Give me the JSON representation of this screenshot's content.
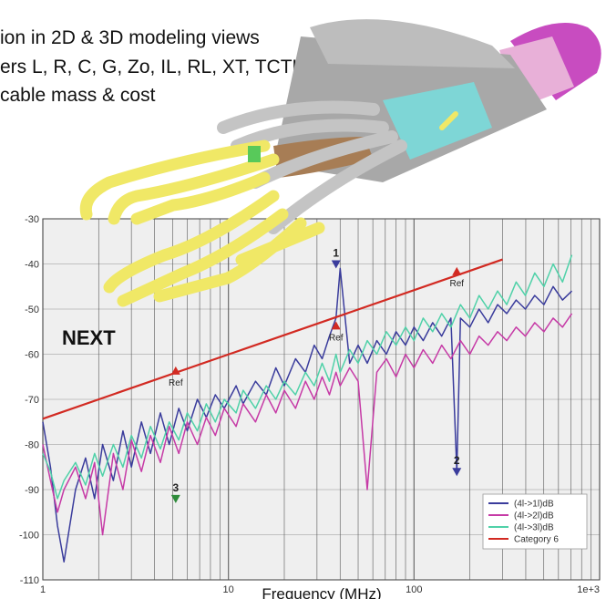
{
  "captions": [
    "ion in 2D & 3D modeling views",
    "ers L, R, C, G, Zo, IL, RL, XT, TCTL",
    "cable mass & cost"
  ],
  "colors": {
    "pair1": "#3a3c9c",
    "pair2": "#c63aa6",
    "pair3": "#4fd1a8",
    "limit": "#d22a22",
    "grid": "#555555",
    "background": "#efefef",
    "cable_yellow": "#f0e866",
    "cable_gray": "#c0c0c0",
    "jacket": "#c84cc0"
  },
  "illustration": {
    "subject": "3d-cable-model-icon"
  },
  "chart_data": {
    "type": "line",
    "title": "",
    "annotation": "NEXT",
    "xlabel": "Frequency (MHz)",
    "ylabel": "",
    "xscale": "log",
    "xlim": [
      1,
      1000
    ],
    "ylim": [
      -110,
      -30
    ],
    "x_ticks": [
      1,
      10,
      100,
      1000
    ],
    "x_tick_labels": [
      "1",
      "10",
      "100",
      "1e+3"
    ],
    "y_ticks": [
      -30,
      -40,
      -50,
      -60,
      -70,
      -80,
      -90,
      -100,
      -110
    ],
    "grid": true,
    "legend_position": "bottom-right",
    "series": [
      {
        "name": "(4l->1l)dB",
        "color": "#3a3c9c",
        "x": [
          1,
          1.1,
          1.2,
          1.3,
          1.5,
          1.7,
          1.9,
          2.1,
          2.4,
          2.7,
          3.0,
          3.4,
          3.8,
          4.3,
          4.8,
          5.4,
          6.0,
          6.8,
          7.6,
          8.5,
          9.5,
          11,
          12,
          14,
          16,
          18,
          20,
          23,
          26,
          29,
          32,
          35,
          38,
          40,
          45,
          50,
          56,
          63,
          71,
          80,
          90,
          100,
          112,
          126,
          141,
          158,
          170,
          178,
          200,
          224,
          251,
          282,
          316,
          355,
          398,
          447,
          501,
          562,
          631,
          708
        ],
        "y": [
          -75,
          -85,
          -98,
          -106,
          -90,
          -83,
          -92,
          -80,
          -88,
          -77,
          -85,
          -75,
          -82,
          -73,
          -80,
          -72,
          -77,
          -70,
          -74,
          -69,
          -72,
          -67,
          -71,
          -66,
          -69,
          -63,
          -67,
          -61,
          -64,
          -58,
          -61,
          -56,
          -52,
          -41,
          -62,
          -58,
          -62,
          -57,
          -60,
          -55,
          -58,
          -54,
          -57,
          -53,
          -56,
          -52,
          -86,
          -52,
          -54,
          -50,
          -53,
          -49,
          -51,
          -48,
          -50,
          -47,
          -49,
          -45,
          -48,
          -46
        ]
      },
      {
        "name": "(4l->2l)dB",
        "color": "#c63aa6",
        "x": [
          1,
          1.1,
          1.2,
          1.3,
          1.5,
          1.7,
          1.9,
          2.1,
          2.4,
          2.7,
          3.0,
          3.4,
          3.8,
          4.3,
          4.8,
          5.4,
          6.0,
          6.8,
          7.6,
          8.5,
          9.5,
          11,
          12,
          14,
          16,
          18,
          20,
          23,
          26,
          29,
          32,
          35,
          38,
          40,
          45,
          50,
          56,
          63,
          71,
          80,
          90,
          100,
          112,
          126,
          141,
          158,
          178,
          200,
          224,
          251,
          282,
          316,
          355,
          398,
          447,
          501,
          562,
          631,
          708
        ],
        "y": [
          -80,
          -88,
          -95,
          -90,
          -85,
          -92,
          -84,
          -100,
          -82,
          -90,
          -79,
          -86,
          -78,
          -84,
          -76,
          -82,
          -75,
          -80,
          -74,
          -78,
          -72,
          -76,
          -71,
          -75,
          -69,
          -73,
          -68,
          -72,
          -66,
          -70,
          -65,
          -69,
          -64,
          -67,
          -63,
          -66,
          -90,
          -64,
          -61,
          -65,
          -60,
          -63,
          -59,
          -62,
          -58,
          -61,
          -57,
          -60,
          -56,
          -58,
          -55,
          -57,
          -54,
          -56,
          -53,
          -55,
          -52,
          -54,
          -51
        ]
      },
      {
        "name": "(4l->3l)dB",
        "color": "#4fd1a8",
        "x": [
          1,
          1.1,
          1.2,
          1.3,
          1.5,
          1.7,
          1.9,
          2.1,
          2.4,
          2.7,
          3.0,
          3.4,
          3.8,
          4.3,
          4.8,
          5.4,
          6.0,
          6.8,
          7.6,
          8.5,
          9.5,
          11,
          12,
          14,
          16,
          18,
          20,
          23,
          26,
          29,
          32,
          35,
          38,
          40,
          45,
          50,
          56,
          63,
          71,
          80,
          90,
          100,
          112,
          126,
          141,
          158,
          178,
          200,
          224,
          251,
          282,
          316,
          355,
          398,
          447,
          501,
          562,
          631,
          708
        ],
        "y": [
          -82,
          -86,
          -92,
          -88,
          -84,
          -89,
          -82,
          -87,
          -80,
          -85,
          -78,
          -83,
          -76,
          -81,
          -75,
          -79,
          -73,
          -77,
          -71,
          -75,
          -70,
          -73,
          -68,
          -72,
          -67,
          -70,
          -66,
          -69,
          -64,
          -67,
          -62,
          -66,
          -60,
          -64,
          -59,
          -62,
          -57,
          -60,
          -55,
          -58,
          -54,
          -57,
          -52,
          -55,
          -51,
          -54,
          -49,
          -52,
          -47,
          -50,
          -46,
          -49,
          -44,
          -47,
          -42,
          -45,
          -40,
          -44,
          -38
        ]
      },
      {
        "name": "Category 6",
        "color": "#d22a22",
        "x": [
          1,
          300
        ],
        "y": [
          -74.3,
          -39
        ]
      }
    ],
    "markers": [
      {
        "x": 5.2,
        "y": -63.5,
        "label": "Ref",
        "color": "#d22a22",
        "direction": "up"
      },
      {
        "x": 38,
        "y": -53.5,
        "label": "Ref",
        "color": "#d22a22",
        "direction": "up"
      },
      {
        "x": 170,
        "y": -41.5,
        "label": "Ref",
        "color": "#d22a22",
        "direction": "up"
      },
      {
        "x": 38,
        "y": -40,
        "label": "1",
        "color": "#3a3c9c",
        "direction": "down"
      },
      {
        "x": 170,
        "y": -86,
        "label": "2",
        "color": "#3a3c9c",
        "direction": "down"
      },
      {
        "x": 5.2,
        "y": -92,
        "label": "3",
        "color": "#2e8b3a",
        "direction": "down"
      }
    ]
  }
}
